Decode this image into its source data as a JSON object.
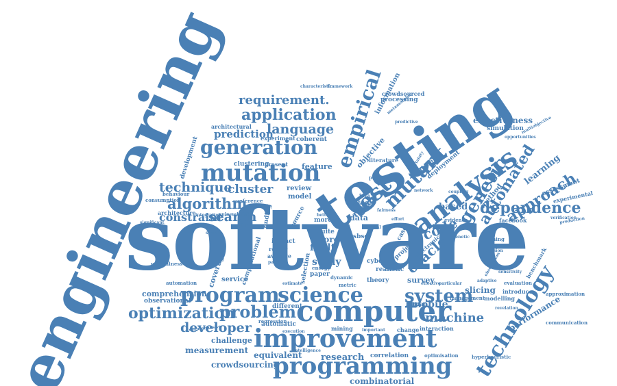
{
  "color": "#4a80b5",
  "words": {
    "software": "software",
    "engineering": "engineering",
    "testing": "testing",
    "improvement": "improvement",
    "computer": "computer",
    "programming": "programming",
    "program": "program",
    "science": "science",
    "mutation": "mutation",
    "generation": "generation",
    "analysis": "analysis",
    "technology": "technology",
    "test": "test",
    "empirical": "empirical",
    "genetic": "genetic",
    "automated": "automated",
    "approach": "approach",
    "dependence": "dependence",
    "mutant": "mutant",
    "optimization": "optimization",
    "problem": "problem",
    "application": "application",
    "requirement": "requirement.",
    "language": "language",
    "algorithm": "algorithm",
    "technique": "technique",
    "search": "search",
    "system": "system",
    "machine": "machine",
    "developer": "developer",
    "oracle": "oracle",
    "code": "code",
    "combinatorial": "combinatorial",
    "research": "research",
    "crowdsourcing": "crowdsourcing",
    "measurement": "measurement",
    "equivalent": "equivalent",
    "challenge": "challenge",
    "mobile": "mobile",
    "study": "study",
    "fault": "fault",
    "store": "store",
    "constraint": "constraint",
    "cluster": "cluster",
    "prediction": "prediction",
    "based": "based",
    "effectiveness": "effectiveness",
    "learning": "learning",
    "slicing": "slicing",
    "performance": "performance",
    "comprehension": "comprehension",
    "observational": "observational",
    "service": "service",
    "feature": "feature",
    "review": "review",
    "model": "model",
    "data": "data",
    "simulation": "simulation",
    "processing": "processing",
    "information": "information",
    "crowdsourced": "crowdsourced",
    "assessment": "assessment",
    "experimental": "experimental",
    "facebook": "facebook",
    "coherent": "coherent",
    "experiment": "experiment",
    "architectural": "architectural",
    "clustering": "clustering",
    "present": "present",
    "development": "development",
    "architecture": "architecture",
    "survey": "survey",
    "theory": "theory",
    "paper": "paper",
    "impact": "impact",
    "correlation": "correlation",
    "mining": "mining",
    "automatic": "automatic",
    "regression": "regression",
    "change": "change",
    "interaction": "interaction",
    "human": "human",
    "modelling": "modelling",
    "introduce": "introduce",
    "evaluation": "evaluation",
    "benchmark": "benchmark",
    "approximation": "approximation",
    "communication": "communication",
    "hyperheuristic": "hyperheuristic",
    "realistic": "realistic",
    "case": "case",
    "method": "method",
    "deployment": "deployment",
    "estimation": "estimation",
    "objective": "objective",
    "result": "result",
    "coverage": "coverage",
    "computational": "computational",
    "selection": "selection",
    "suite": "suite",
    "sbse": "sbse",
    "cyber": "cyber",
    "different": "different",
    "management": "management",
    "planning": "planning",
    "evidence": "evidence",
    "literature": "literature",
    "practice": "practice",
    "finding": "finding",
    "source": "source",
    "tool": "tool",
    "more": "more",
    "repair": "repair",
    "average": "average",
    "efficiency": "efficiency",
    "dynamic": "dynamic",
    "energy": "energy",
    "optimisation": "optimisation",
    "naturalness": "naturalness",
    "automation": "automation",
    "behaviour": "behaviour",
    "consumption": "consumption",
    "conference": "conference",
    "vulnerabilities": "vulnerabilities",
    "verification": "verification",
    "production": "production",
    "multiobjective": "multiobjective",
    "opportunities": "opportunities",
    "predictive": "predictive",
    "framework": "framework",
    "characteristic": "characteristic",
    "metamorphic": "metamorphic",
    "comprehensive": "comprehensive",
    "intelligence": "intelligence",
    "important": "important",
    "metric": "metric",
    "electronic": "electronic",
    "project": "project",
    "java": "java",
    "open": "open",
    "static": "static",
    "effort": "effort",
    "sensitivity": "sensitivity",
    "cohesion": "cohesion",
    "revelation": "revelation",
    "observation": "observation",
    "adaptive": "adaptive",
    "estimate": "estimate",
    "integration": "integration",
    "significant": "significant",
    "execution": "execution",
    "parallel": "parallel",
    "natural": "natural",
    "better": "better",
    "uncertainty": "uncertainty",
    "coupling": "coupling",
    "fairness": "fairness",
    "particular": "particular",
    "effective": "effective",
    "network": "network",
    "search_small": "search",
    "genetic_small": "genetic"
  }
}
